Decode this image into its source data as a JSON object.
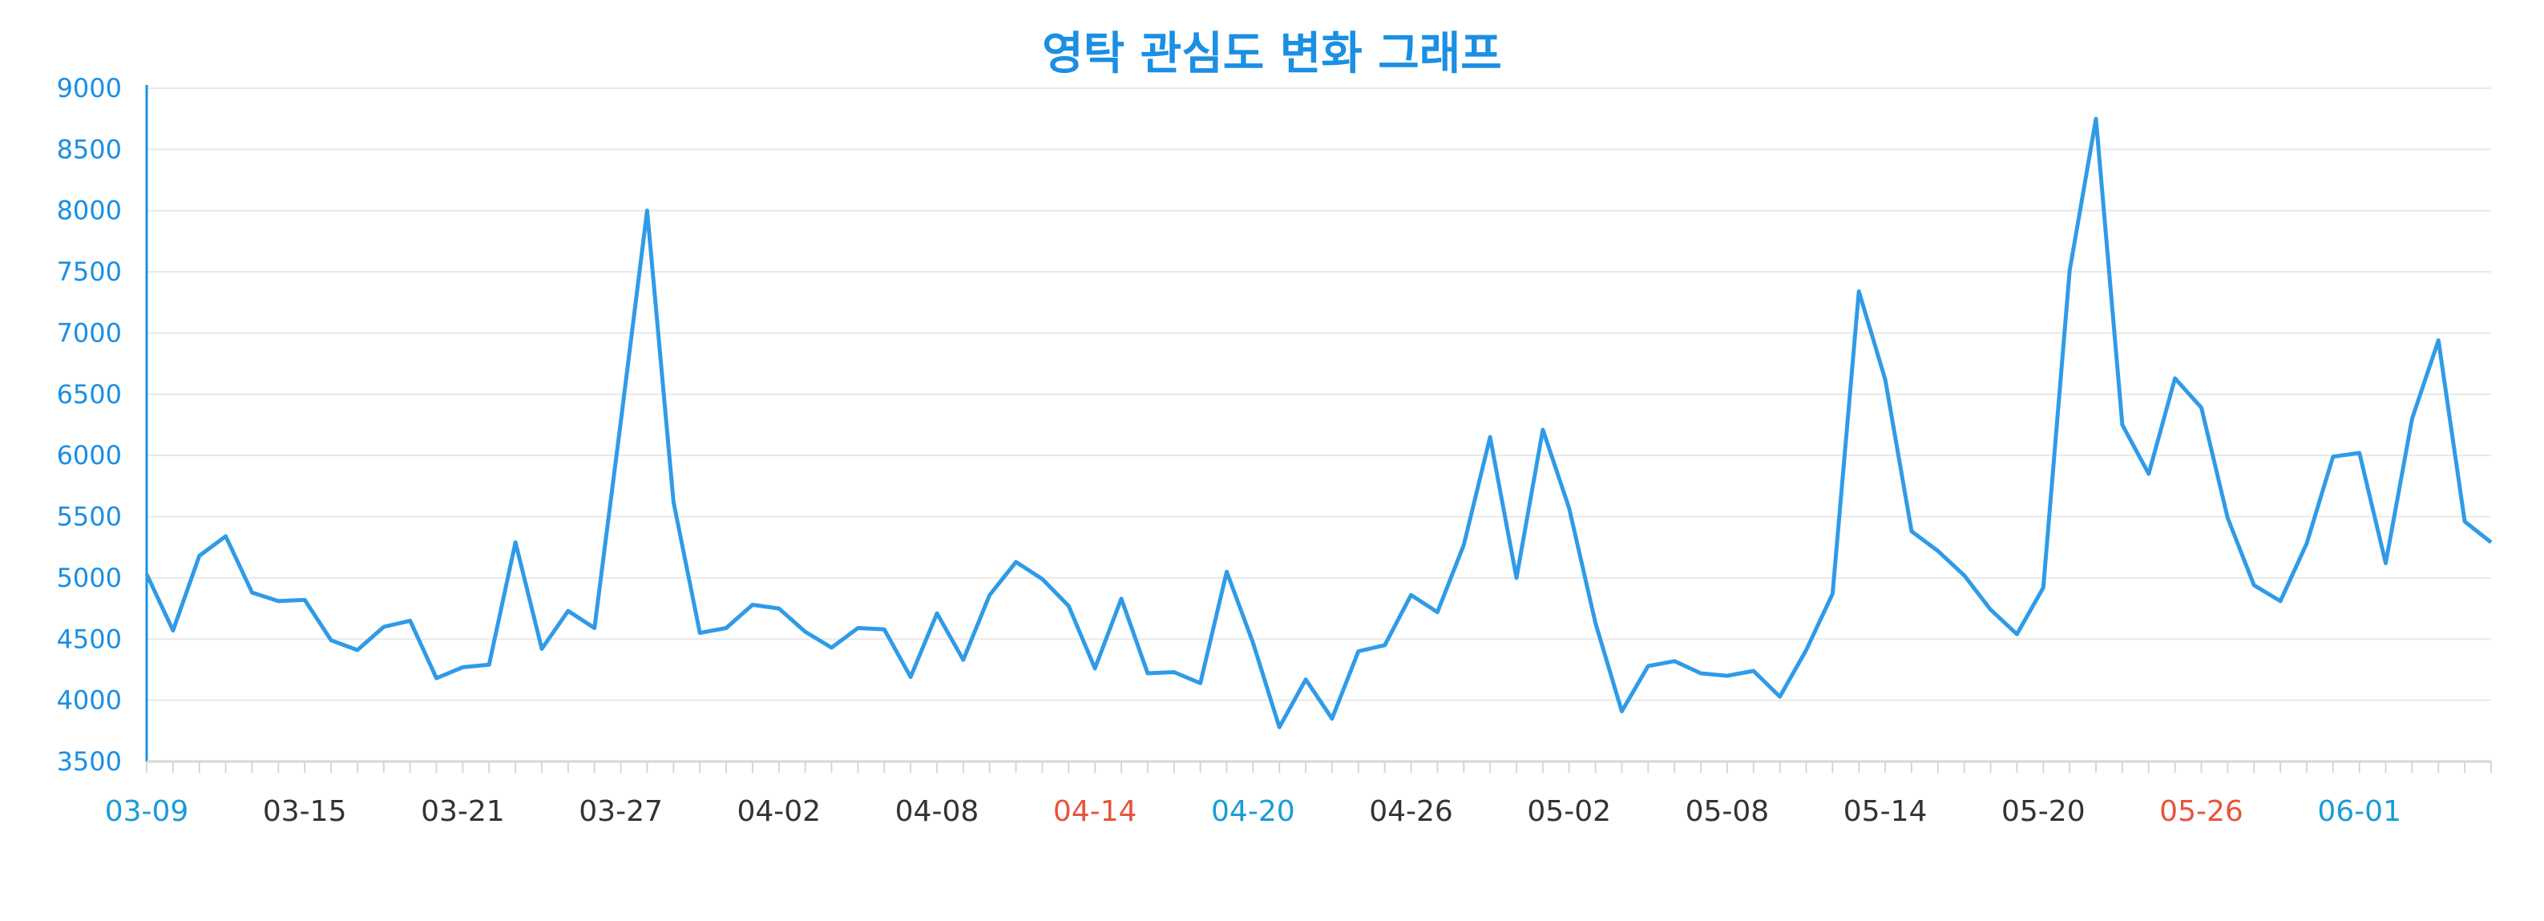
{
  "chart_data": {
    "type": "line",
    "title": "영탁 관심도 변화 그래프",
    "xlabel": "",
    "ylabel": "",
    "ylim": [
      3500,
      9000
    ],
    "yticks": [
      3500,
      4000,
      4500,
      5000,
      5500,
      6000,
      6500,
      7000,
      7500,
      8000,
      8500,
      9000
    ],
    "grid": true,
    "legend": "none",
    "x_tick_labels": [
      {
        "label": "03-09",
        "color": "#1a9bd7"
      },
      {
        "label": "03-15",
        "color": "#333333"
      },
      {
        "label": "03-21",
        "color": "#333333"
      },
      {
        "label": "03-27",
        "color": "#333333"
      },
      {
        "label": "04-02",
        "color": "#333333"
      },
      {
        "label": "04-08",
        "color": "#333333"
      },
      {
        "label": "04-14",
        "color": "#e8533a"
      },
      {
        "label": "04-20",
        "color": "#1a9bd7"
      },
      {
        "label": "04-26",
        "color": "#333333"
      },
      {
        "label": "05-02",
        "color": "#333333"
      },
      {
        "label": "05-08",
        "color": "#333333"
      },
      {
        "label": "05-14",
        "color": "#333333"
      },
      {
        "label": "05-20",
        "color": "#333333"
      },
      {
        "label": "05-26",
        "color": "#e8533a"
      },
      {
        "label": "06-01",
        "color": "#1a9bd7"
      }
    ],
    "series": [
      {
        "color": "#2f9be8",
        "values": [
          5030,
          4570,
          5180,
          5340,
          4880,
          4810,
          4820,
          4490,
          4410,
          4600,
          4650,
          4180,
          4270,
          4290,
          5290,
          4420,
          4730,
          4590,
          6280,
          8000,
          5620,
          4550,
          4590,
          4780,
          4750,
          4560,
          4430,
          4590,
          4580,
          4190,
          4710,
          4330,
          4860,
          5130,
          4990,
          4770,
          4260,
          4830,
          4220,
          4230,
          4140,
          5050,
          4470,
          3780,
          4170,
          3850,
          4400,
          4450,
          4860,
          4720,
          5270,
          6150,
          5000,
          6210,
          5570,
          4630,
          3910,
          4280,
          4320,
          4220,
          4200,
          4240,
          4030,
          4410,
          4870,
          7340,
          6620,
          5380,
          5220,
          5020,
          4740,
          4540,
          4920,
          7510,
          8750,
          6250,
          5850,
          6630,
          6390,
          5490,
          4940,
          4810,
          5280,
          5990,
          6020,
          5120,
          6300,
          6940,
          5460,
          5290
        ]
      }
    ]
  }
}
